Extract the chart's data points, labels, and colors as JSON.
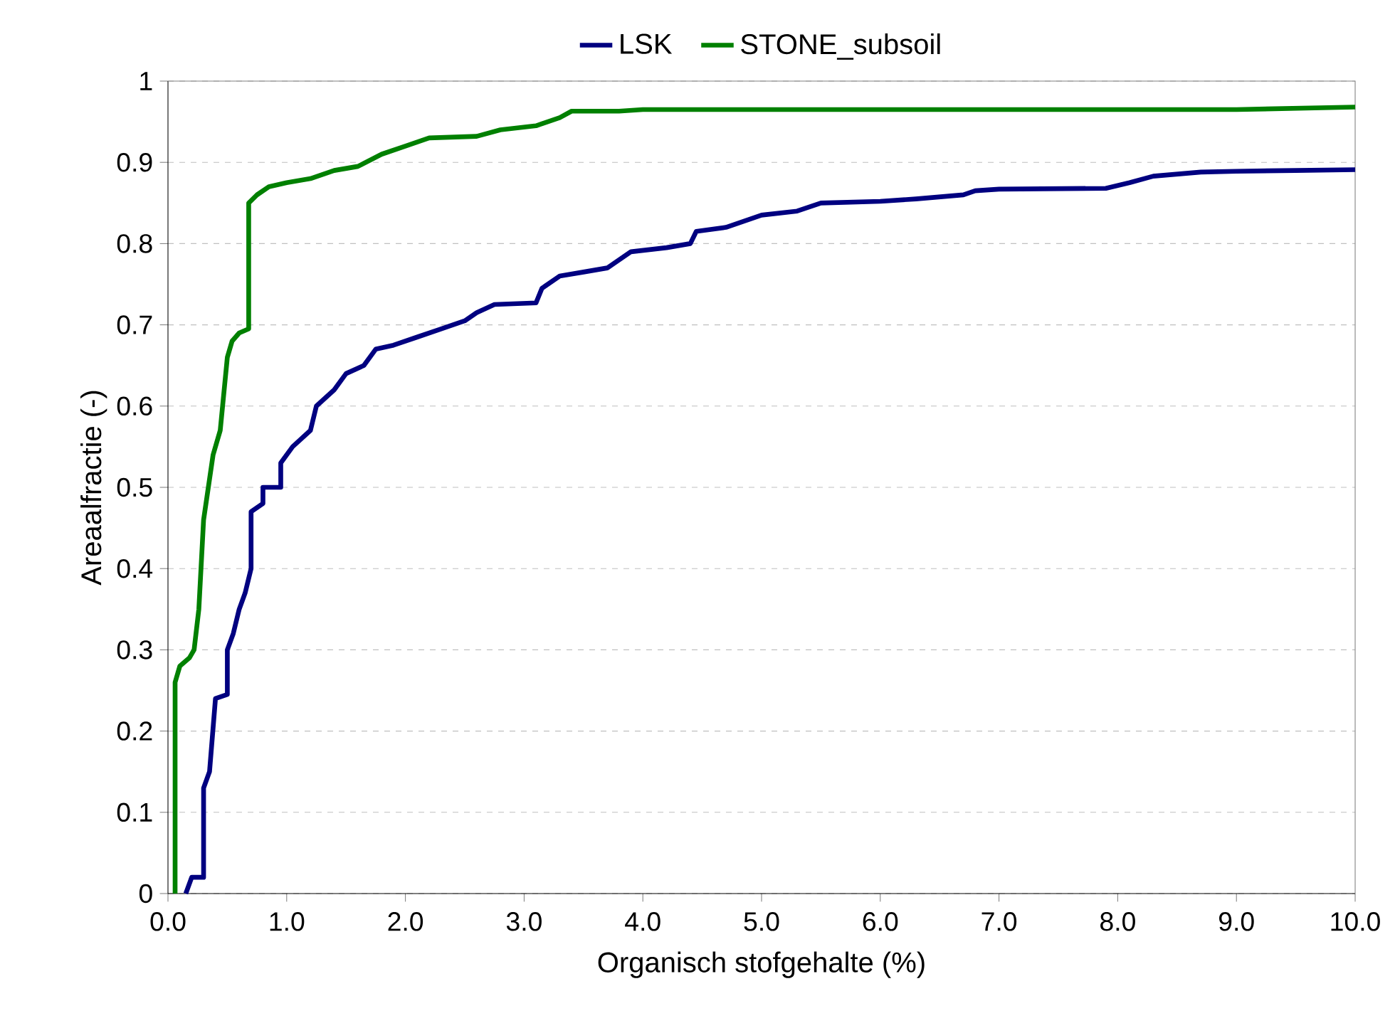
{
  "chart_data": {
    "type": "line",
    "xlabel": "Organisch stofgehalte (%)",
    "ylabel": "Areaalfractie (-)",
    "xlim": [
      0,
      10
    ],
    "ylim": [
      0,
      1
    ],
    "xticks": [
      {
        "value": 0,
        "label": "0.0"
      },
      {
        "value": 1,
        "label": "1.0"
      },
      {
        "value": 2,
        "label": "2.0"
      },
      {
        "value": 3,
        "label": "3.0"
      },
      {
        "value": 4,
        "label": "4.0"
      },
      {
        "value": 5,
        "label": "5.0"
      },
      {
        "value": 6,
        "label": "6.0"
      },
      {
        "value": 7,
        "label": "7.0"
      },
      {
        "value": 8,
        "label": "8.0"
      },
      {
        "value": 9,
        "label": "9.0"
      },
      {
        "value": 10,
        "label": "10.0"
      }
    ],
    "yticks": [
      0,
      0.1,
      0.2,
      0.3,
      0.4,
      0.5,
      0.6,
      0.7,
      0.8,
      0.9,
      1
    ],
    "grid": "y",
    "legend": "top",
    "marker": "none",
    "line_style": "solid",
    "series": [
      {
        "name": "LSK",
        "color": "#000080",
        "x": [
          0.15,
          0.2,
          0.3,
          0.3,
          0.35,
          0.4,
          0.5,
          0.5,
          0.55,
          0.6,
          0.65,
          0.7,
          0.7,
          0.8,
          0.8,
          0.95,
          0.95,
          1.05,
          1.2,
          1.25,
          1.4,
          1.5,
          1.65,
          1.75,
          1.9,
          2.1,
          2.3,
          2.5,
          2.6,
          2.75,
          3.1,
          3.15,
          3.3,
          3.5,
          3.7,
          3.9,
          4.2,
          4.4,
          4.45,
          4.7,
          5.0,
          5.3,
          5.5,
          6.0,
          6.3,
          6.7,
          6.8,
          7.0,
          7.9,
          8.1,
          8.3,
          8.7,
          9.0,
          9.5,
          10.0
        ],
        "values": [
          0,
          0.02,
          0.02,
          0.13,
          0.15,
          0.24,
          0.245,
          0.3,
          0.32,
          0.35,
          0.37,
          0.4,
          0.47,
          0.48,
          0.5,
          0.5,
          0.53,
          0.55,
          0.57,
          0.6,
          0.62,
          0.64,
          0.65,
          0.67,
          0.675,
          0.685,
          0.695,
          0.705,
          0.715,
          0.725,
          0.727,
          0.745,
          0.76,
          0.765,
          0.77,
          0.79,
          0.795,
          0.8,
          0.815,
          0.82,
          0.835,
          0.84,
          0.85,
          0.852,
          0.855,
          0.86,
          0.865,
          0.867,
          0.868,
          0.875,
          0.883,
          0.888,
          0.889,
          0.89,
          0.891
        ]
      },
      {
        "name": "STONE_subsoil",
        "color": "#008000",
        "x": [
          0.06,
          0.06,
          0.1,
          0.18,
          0.22,
          0.26,
          0.3,
          0.34,
          0.38,
          0.44,
          0.48,
          0.5,
          0.54,
          0.6,
          0.68,
          0.68,
          0.75,
          0.85,
          1.0,
          1.2,
          1.4,
          1.6,
          1.8,
          2.0,
          2.2,
          2.6,
          2.8,
          3.1,
          3.3,
          3.4,
          3.8,
          4.0,
          9.0,
          10.0
        ],
        "values": [
          0,
          0.26,
          0.28,
          0.29,
          0.3,
          0.35,
          0.46,
          0.5,
          0.54,
          0.57,
          0.63,
          0.66,
          0.68,
          0.69,
          0.695,
          0.85,
          0.86,
          0.87,
          0.875,
          0.88,
          0.89,
          0.895,
          0.91,
          0.92,
          0.93,
          0.932,
          0.94,
          0.945,
          0.955,
          0.963,
          0.963,
          0.965,
          0.965,
          0.968
        ]
      }
    ]
  }
}
